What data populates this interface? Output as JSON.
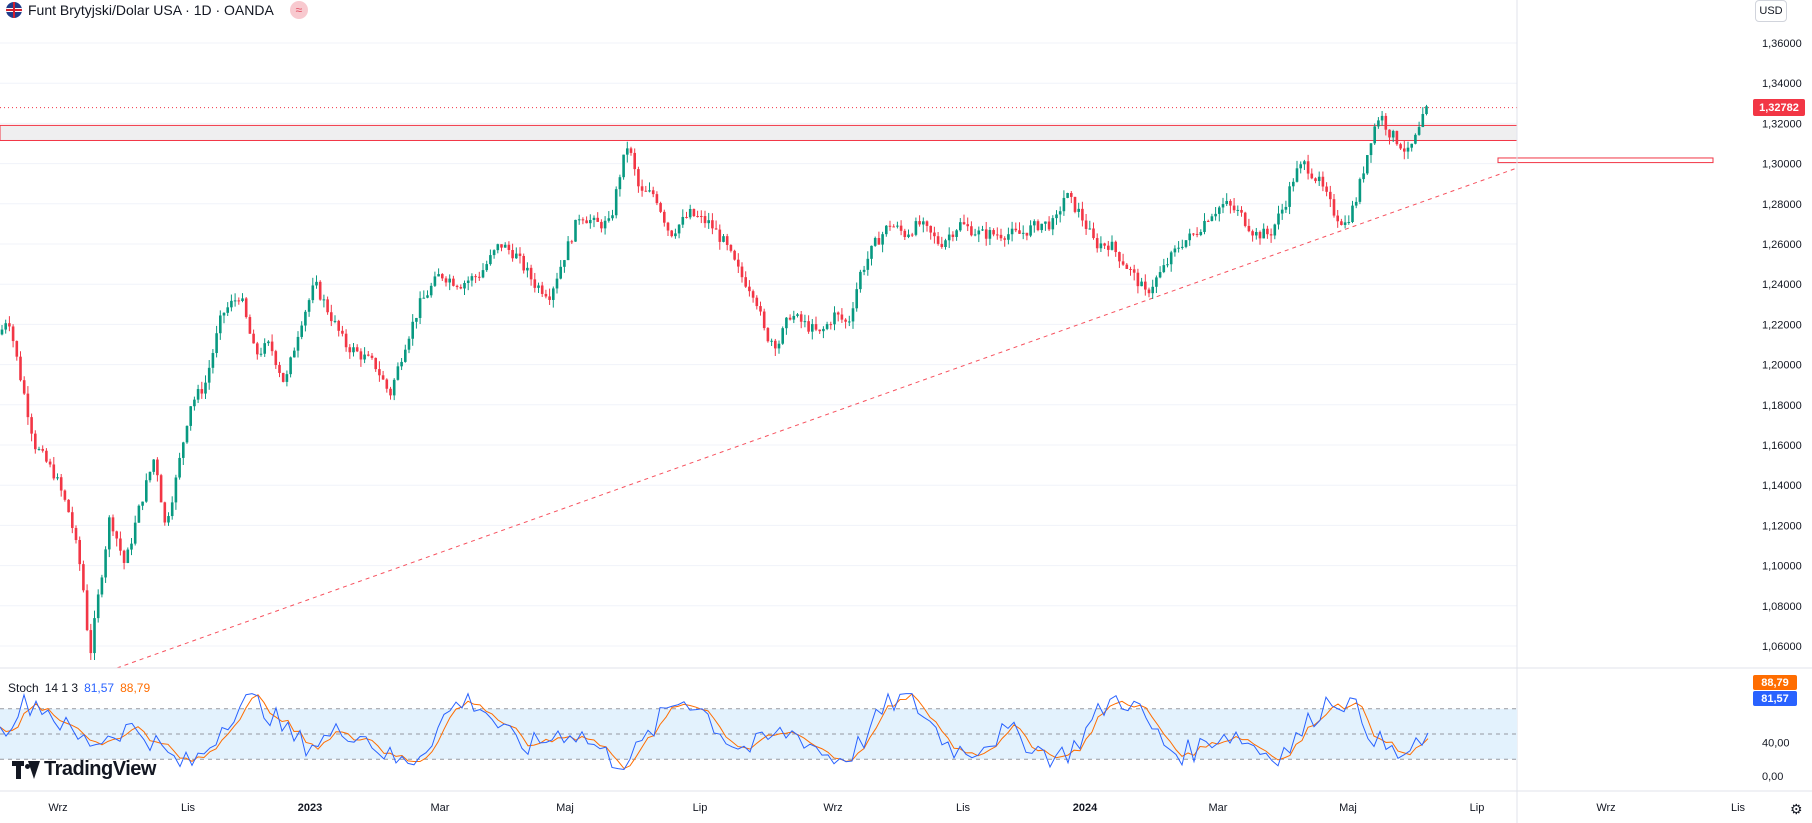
{
  "header": {
    "symbol_title": "Funt Brytyjski/Dolar USA · 1D · OANDA",
    "flag_icon": "uk-flag-icon",
    "indicator_icon": "wave-icon"
  },
  "currency_button": "USD",
  "last_price_label": "1,32782",
  "colors": {
    "up": "#089981",
    "down": "#f23645",
    "k_line": "#2962ff",
    "d_line": "#ff6d00",
    "band": "#e3f2fd"
  },
  "stochastic": {
    "name": "Stoch",
    "params": "14 1 3",
    "k_value": "81,57",
    "d_value": "88,79"
  },
  "logo_text": "TradingView",
  "chart_data": {
    "type": "candlestick",
    "price_axis": {
      "ylim": [
        1.04,
        1.37
      ],
      "ticks": [
        "1,36000",
        "1,34000",
        "1,32000",
        "1,30000",
        "1,28000",
        "1,26000",
        "1,24000",
        "1,22000",
        "1,20000",
        "1,18000",
        "1,16000",
        "1,14000",
        "1,12000",
        "1,10000",
        "1,08000",
        "1,06000"
      ],
      "tick_values": [
        1.36,
        1.34,
        1.32,
        1.3,
        1.28,
        1.26,
        1.24,
        1.22,
        1.2,
        1.18,
        1.16,
        1.14,
        1.12,
        1.1,
        1.08,
        1.06
      ]
    },
    "time_axis": {
      "labels": [
        "Wrz",
        "Lis",
        "2023",
        "Mar",
        "Maj",
        "Lip",
        "Wrz",
        "Lis",
        "2024",
        "Mar",
        "Maj",
        "Lip",
        "Wrz",
        "Lis"
      ]
    },
    "close_path": [
      [
        0,
        1.215
      ],
      [
        8,
        1.225
      ],
      [
        20,
        1.195
      ],
      [
        35,
        1.16
      ],
      [
        55,
        1.145
      ],
      [
        70,
        1.125
      ],
      [
        82,
        1.095
      ],
      [
        90,
        1.055
      ],
      [
        97,
        1.08
      ],
      [
        110,
        1.125
      ],
      [
        125,
        1.1
      ],
      [
        140,
        1.13
      ],
      [
        155,
        1.155
      ],
      [
        165,
        1.12
      ],
      [
        175,
        1.14
      ],
      [
        190,
        1.18
      ],
      [
        205,
        1.19
      ],
      [
        222,
        1.225
      ],
      [
        240,
        1.235
      ],
      [
        255,
        1.205
      ],
      [
        270,
        1.21
      ],
      [
        285,
        1.19
      ],
      [
        300,
        1.22
      ],
      [
        315,
        1.24
      ],
      [
        330,
        1.225
      ],
      [
        345,
        1.21
      ],
      [
        360,
        1.205
      ],
      [
        375,
        1.2
      ],
      [
        390,
        1.185
      ],
      [
        405,
        1.21
      ],
      [
        420,
        1.23
      ],
      [
        440,
        1.245
      ],
      [
        460,
        1.24
      ],
      [
        480,
        1.245
      ],
      [
        500,
        1.26
      ],
      [
        515,
        1.255
      ],
      [
        535,
        1.24
      ],
      [
        550,
        1.235
      ],
      [
        565,
        1.255
      ],
      [
        580,
        1.275
      ],
      [
        595,
        1.27
      ],
      [
        610,
        1.27
      ],
      [
        620,
        1.295
      ],
      [
        628,
        1.31
      ],
      [
        640,
        1.285
      ],
      [
        655,
        1.285
      ],
      [
        670,
        1.265
      ],
      [
        690,
        1.275
      ],
      [
        710,
        1.27
      ],
      [
        725,
        1.26
      ],
      [
        740,
        1.245
      ],
      [
        755,
        1.235
      ],
      [
        765,
        1.215
      ],
      [
        778,
        1.21
      ],
      [
        790,
        1.225
      ],
      [
        805,
        1.22
      ],
      [
        820,
        1.215
      ],
      [
        835,
        1.225
      ],
      [
        848,
        1.22
      ],
      [
        860,
        1.245
      ],
      [
        875,
        1.26
      ],
      [
        890,
        1.27
      ],
      [
        905,
        1.265
      ],
      [
        920,
        1.27
      ],
      [
        940,
        1.26
      ],
      [
        960,
        1.27
      ],
      [
        980,
        1.265
      ],
      [
        1000,
        1.265
      ],
      [
        1020,
        1.265
      ],
      [
        1040,
        1.27
      ],
      [
        1055,
        1.27
      ],
      [
        1065,
        1.285
      ],
      [
        1080,
        1.275
      ],
      [
        1095,
        1.26
      ],
      [
        1110,
        1.26
      ],
      [
        1125,
        1.25
      ],
      [
        1140,
        1.24
      ],
      [
        1145,
        1.235
      ],
      [
        1160,
        1.245
      ],
      [
        1180,
        1.26
      ],
      [
        1195,
        1.265
      ],
      [
        1210,
        1.275
      ],
      [
        1225,
        1.28
      ],
      [
        1240,
        1.275
      ],
      [
        1255,
        1.265
      ],
      [
        1270,
        1.265
      ],
      [
        1285,
        1.28
      ],
      [
        1295,
        1.295
      ],
      [
        1305,
        1.3
      ],
      [
        1320,
        1.29
      ],
      [
        1335,
        1.275
      ],
      [
        1345,
        1.27
      ],
      [
        1355,
        1.28
      ],
      [
        1365,
        1.3
      ],
      [
        1372,
        1.315
      ],
      [
        1380,
        1.325
      ],
      [
        1390,
        1.315
      ],
      [
        1400,
        1.31
      ],
      [
        1408,
        1.305
      ],
      [
        1418,
        1.315
      ],
      [
        1425,
        1.325
      ],
      [
        1428,
        1.328
      ]
    ],
    "support_zone": {
      "from": 1.3115,
      "to": 1.319
    },
    "small_zone": {
      "from": 1.3005,
      "to": 1.3028
    },
    "current_price": 1.32782,
    "stoch_axis": {
      "ticks": [
        "40,00",
        "0,00"
      ],
      "band": [
        20,
        80
      ],
      "midline": 50
    }
  }
}
